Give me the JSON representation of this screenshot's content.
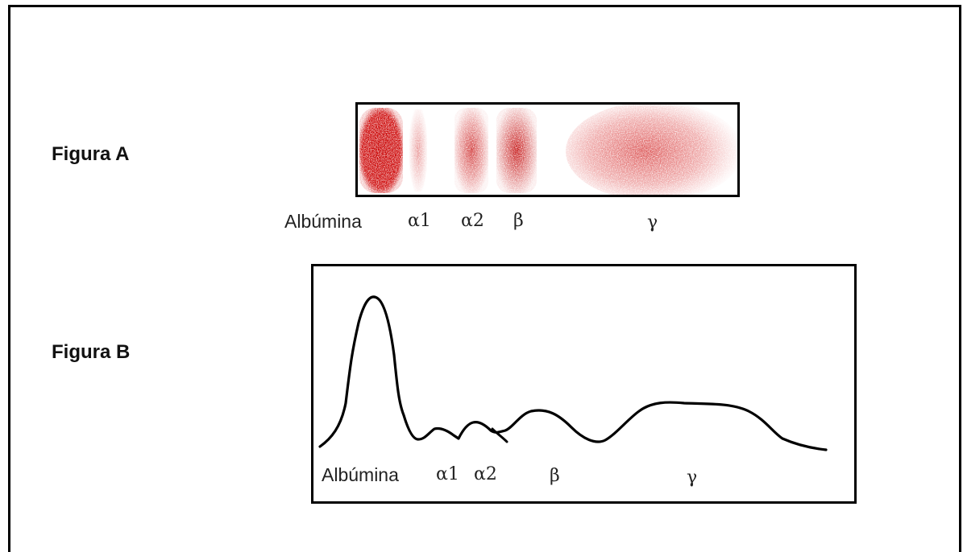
{
  "figure_a": {
    "label": "Figura A",
    "bands": [
      {
        "name": "Albúmina",
        "intensity": 0.95
      },
      {
        "name": "α1",
        "intensity": 0.18
      },
      {
        "name": "α2",
        "intensity": 0.55
      },
      {
        "name": "β",
        "intensity": 0.8
      },
      {
        "name": "γ",
        "intensity": 0.45
      }
    ],
    "labels": {
      "albumina": "Albúmina",
      "alpha1": "α1",
      "alpha2": "α2",
      "beta": "β",
      "gamma": "γ"
    },
    "band_color": "#cc0000"
  },
  "figure_b": {
    "label": "Figura B",
    "labels": {
      "albumina": "Albúmina",
      "alpha1": "α1",
      "alpha2": "α2",
      "beta": "β",
      "gamma": "γ"
    },
    "line_color": "#000000"
  }
}
